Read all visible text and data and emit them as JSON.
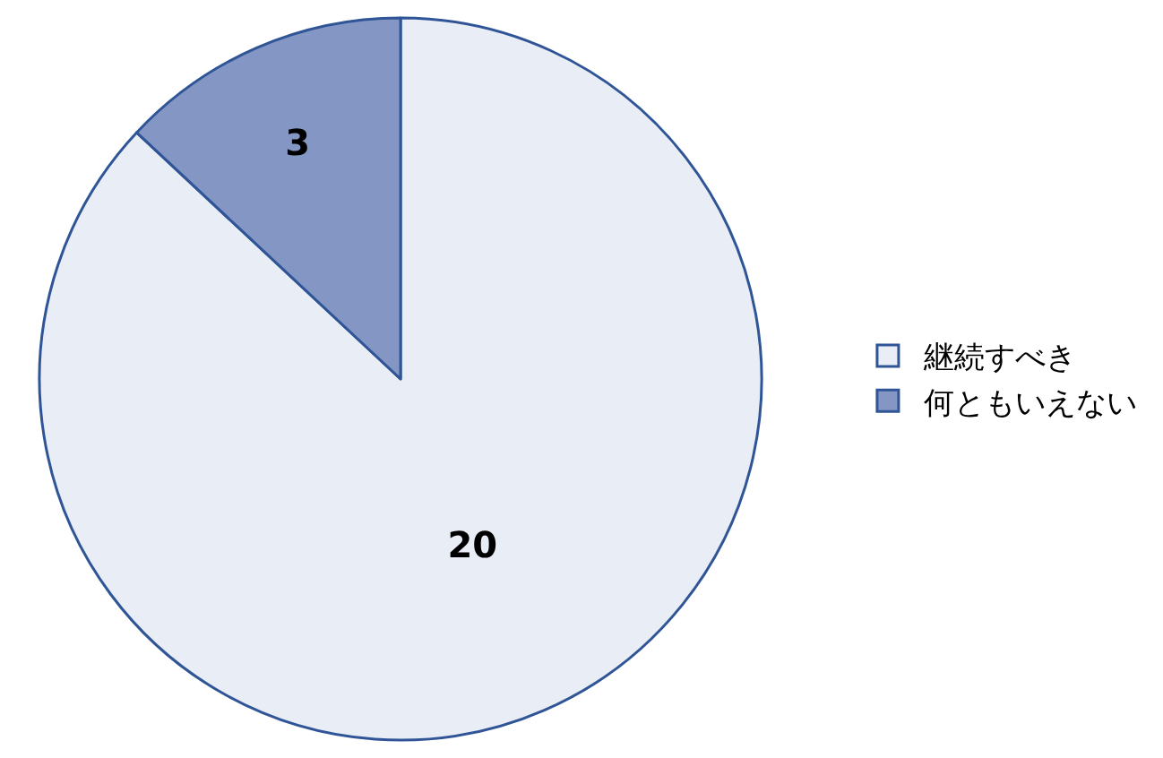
{
  "chart_data": {
    "type": "pie",
    "categories": [
      "継続すべき",
      "何ともいえない"
    ],
    "values": [
      20,
      3
    ],
    "colors": [
      "#e9edf6",
      "#8497c4"
    ],
    "data_labels": true,
    "legend": "right"
  }
}
